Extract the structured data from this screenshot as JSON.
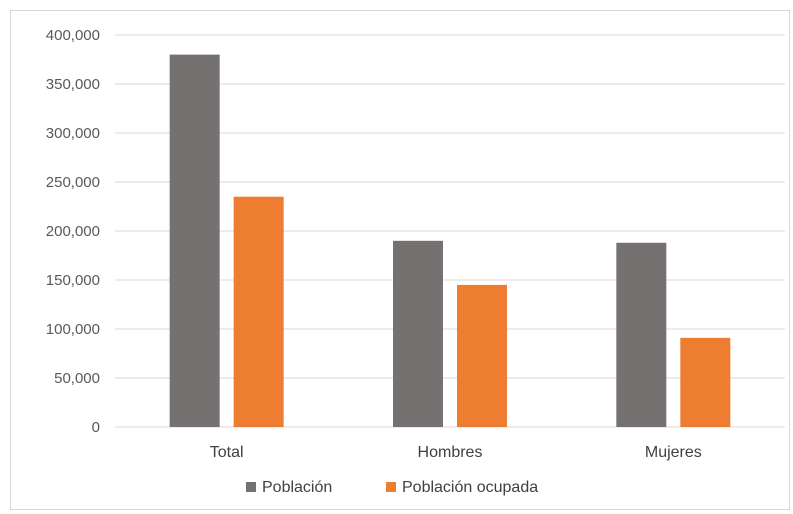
{
  "chart_data": {
    "type": "bar",
    "title": "",
    "xlabel": "",
    "ylabel": "",
    "categories": [
      "Total",
      "Hombres",
      "Mujeres"
    ],
    "series": [
      {
        "name": "Población",
        "values": [
          380000,
          190000,
          188000
        ],
        "color": "#767171"
      },
      {
        "name": "Población ocupada",
        "values": [
          235000,
          145000,
          91000
        ],
        "color": "#ED7D31"
      }
    ],
    "ylim": [
      0,
      400000
    ],
    "yticks": [
      0,
      50000,
      100000,
      150000,
      200000,
      250000,
      300000,
      350000,
      400000
    ],
    "ytick_labels": [
      "0",
      "50,000",
      "100,000",
      "150,000",
      "200,000",
      "250,000",
      "300,000",
      "350,000",
      "400,000"
    ],
    "grid": true,
    "gridline_color": "#d9d9d9",
    "legend_position": "bottom"
  }
}
